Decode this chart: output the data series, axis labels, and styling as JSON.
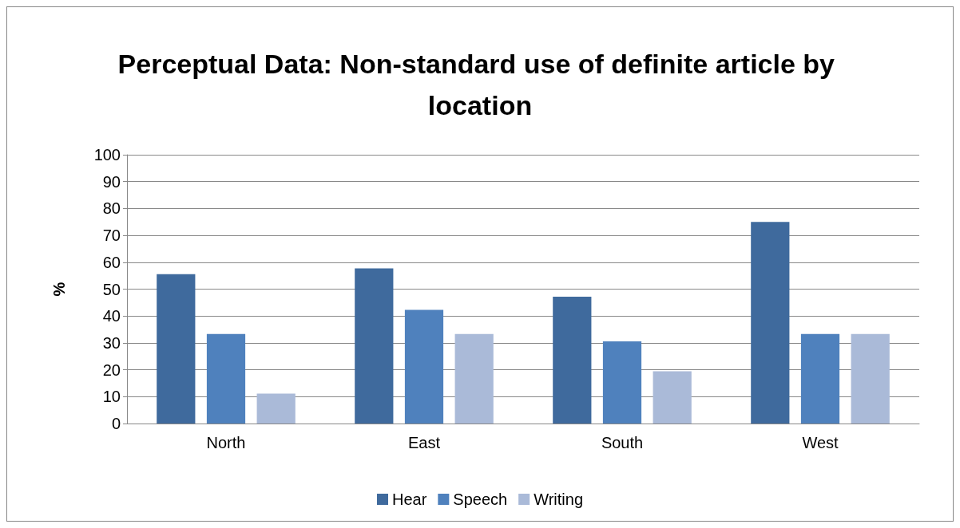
{
  "chart_data": {
    "type": "bar",
    "title": "Perceptual Data: Non-standard use of definite article by location",
    "ylabel": "%",
    "categories": [
      "North",
      "East",
      "South",
      "West"
    ],
    "series": [
      {
        "name": "Hear",
        "color": "#3f6a9d",
        "values": [
          55.6,
          57.7,
          47.2,
          75
        ]
      },
      {
        "name": "Speech",
        "color": "#4f81bd",
        "values": [
          33.3,
          42.3,
          30.6,
          33.3
        ]
      },
      {
        "name": "Writing",
        "color": "#aabad8",
        "values": [
          11.1,
          33.3,
          19.4,
          33.3
        ]
      }
    ],
    "ylim": [
      0,
      100
    ],
    "yticks": [
      0,
      10,
      20,
      30,
      40,
      50,
      60,
      70,
      80,
      90,
      100
    ],
    "grid": "y",
    "legend": "bottom"
  }
}
